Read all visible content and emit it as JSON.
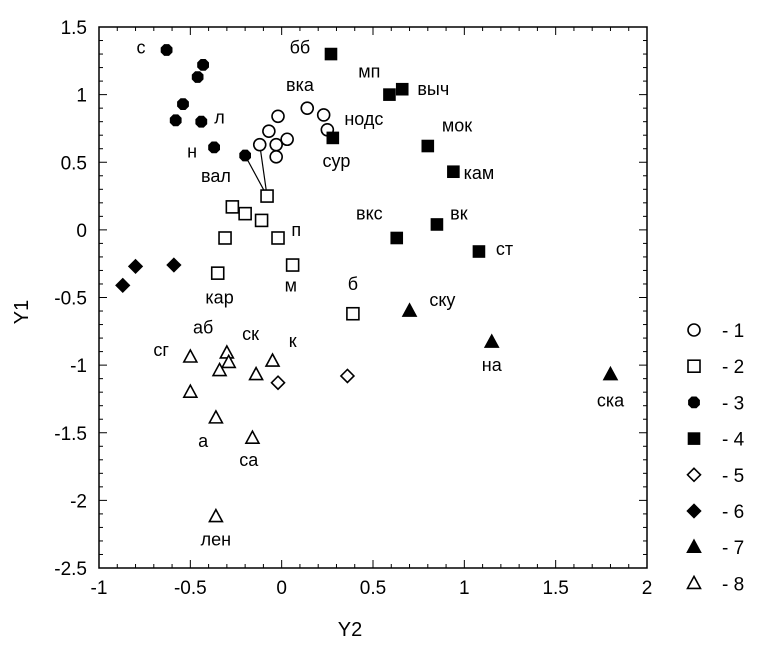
{
  "chart_data": {
    "type": "scatter",
    "xlabel": "Y2",
    "ylabel": "Y1",
    "xlim": [
      -1,
      2
    ],
    "ylim": [
      -2.5,
      1.5
    ],
    "xticks": [
      "-1",
      "-0.5",
      "0",
      "0.5",
      "1",
      "1.5",
      "2"
    ],
    "xtick_values": [
      -1,
      -0.5,
      0,
      0.5,
      1,
      1.5,
      2
    ],
    "yticks": [
      "1.5",
      "1",
      "0.5",
      "0",
      "-0.5",
      "-1",
      "-1.5",
      "-2",
      "-2.5"
    ],
    "ytick_values": [
      1.5,
      1,
      0.5,
      0,
      -0.5,
      -1,
      -1.5,
      -2,
      -2.5
    ],
    "grid": false,
    "legend_position": "right",
    "series": [
      {
        "name": "- 1",
        "marker": "circle-open",
        "points": [
          {
            "x": -0.02,
            "y": 0.84
          },
          {
            "x": -0.07,
            "y": 0.73
          },
          {
            "x": -0.12,
            "y": 0.63
          },
          {
            "x": -0.03,
            "y": 0.63
          },
          {
            "x": 0.03,
            "y": 0.67
          },
          {
            "x": -0.03,
            "y": 0.54
          },
          {
            "x": 0.14,
            "y": 0.9
          },
          {
            "x": 0.23,
            "y": 0.85
          },
          {
            "x": 0.25,
            "y": 0.74
          }
        ]
      },
      {
        "name": "- 2",
        "marker": "square-open",
        "points": [
          {
            "x": -0.08,
            "y": 0.25
          },
          {
            "x": -0.27,
            "y": 0.17
          },
          {
            "x": -0.2,
            "y": 0.12
          },
          {
            "x": -0.11,
            "y": 0.07
          },
          {
            "x": -0.31,
            "y": -0.06
          },
          {
            "x": -0.02,
            "y": -0.06
          },
          {
            "x": -0.35,
            "y": -0.32
          },
          {
            "x": 0.06,
            "y": -0.26
          },
          {
            "x": 0.39,
            "y": -0.62
          }
        ]
      },
      {
        "name": "- 3",
        "marker": "circle-filled",
        "points": [
          {
            "x": -0.63,
            "y": 1.33
          },
          {
            "x": -0.43,
            "y": 1.22
          },
          {
            "x": -0.46,
            "y": 1.13
          },
          {
            "x": -0.54,
            "y": 0.93
          },
          {
            "x": -0.58,
            "y": 0.81
          },
          {
            "x": -0.44,
            "y": 0.8
          },
          {
            "x": -0.37,
            "y": 0.61
          },
          {
            "x": -0.2,
            "y": 0.55
          }
        ]
      },
      {
        "name": "- 4",
        "marker": "square-filled",
        "points": [
          {
            "x": 0.27,
            "y": 1.3
          },
          {
            "x": 0.59,
            "y": 1.0
          },
          {
            "x": 0.66,
            "y": 1.04
          },
          {
            "x": 0.28,
            "y": 0.68
          },
          {
            "x": 0.8,
            "y": 0.62
          },
          {
            "x": 0.94,
            "y": 0.43
          },
          {
            "x": 0.63,
            "y": -0.06
          },
          {
            "x": 0.85,
            "y": 0.04
          },
          {
            "x": 1.08,
            "y": -0.16
          }
        ]
      },
      {
        "name": "- 5",
        "marker": "diamond-open",
        "points": [
          {
            "x": -0.02,
            "y": -1.13
          },
          {
            "x": 0.36,
            "y": -1.08
          }
        ]
      },
      {
        "name": "- 6",
        "marker": "diamond-filled",
        "points": [
          {
            "x": -0.87,
            "y": -0.41
          },
          {
            "x": -0.8,
            "y": -0.27
          },
          {
            "x": -0.59,
            "y": -0.26
          }
        ]
      },
      {
        "name": "- 7",
        "marker": "triangle-filled",
        "points": [
          {
            "x": 0.7,
            "y": -0.6
          },
          {
            "x": 1.15,
            "y": -0.83
          },
          {
            "x": 1.8,
            "y": -1.07
          }
        ]
      },
      {
        "name": "- 8",
        "marker": "triangle-open",
        "points": [
          {
            "x": -0.5,
            "y": -0.94
          },
          {
            "x": -0.3,
            "y": -0.91
          },
          {
            "x": -0.29,
            "y": -0.98
          },
          {
            "x": -0.34,
            "y": -1.04
          },
          {
            "x": -0.5,
            "y": -1.2
          },
          {
            "x": -0.36,
            "y": -1.39
          },
          {
            "x": -0.16,
            "y": -1.54
          },
          {
            "x": -0.14,
            "y": -1.07
          },
          {
            "x": -0.05,
            "y": -0.97
          },
          {
            "x": -0.36,
            "y": -2.12
          }
        ]
      }
    ],
    "point_labels": [
      {
        "text": "с",
        "x": -0.77,
        "y": 1.35
      },
      {
        "text": "бб",
        "x": 0.1,
        "y": 1.35
      },
      {
        "text": "мп",
        "x": 0.48,
        "y": 1.17
      },
      {
        "text": "выч",
        "x": 0.83,
        "y": 1.04
      },
      {
        "text": "вка",
        "x": 0.1,
        "y": 1.07
      },
      {
        "text": "л",
        "x": -0.34,
        "y": 0.83
      },
      {
        "text": "нодс",
        "x": 0.45,
        "y": 0.82
      },
      {
        "text": "мок",
        "x": 0.96,
        "y": 0.77
      },
      {
        "text": "н",
        "x": -0.49,
        "y": 0.58
      },
      {
        "text": "сур",
        "x": 0.3,
        "y": 0.51
      },
      {
        "text": "вал",
        "x": -0.36,
        "y": 0.4
      },
      {
        "text": "кам",
        "x": 1.08,
        "y": 0.42
      },
      {
        "text": "вкс",
        "x": 0.48,
        "y": 0.12
      },
      {
        "text": "вк",
        "x": 0.97,
        "y": 0.12
      },
      {
        "text": "п",
        "x": 0.08,
        "y": 0.0
      },
      {
        "text": "ст",
        "x": 1.22,
        "y": -0.14
      },
      {
        "text": "м",
        "x": 0.05,
        "y": -0.41
      },
      {
        "text": "б",
        "x": 0.39,
        "y": -0.4
      },
      {
        "text": "кар",
        "x": -0.34,
        "y": -0.5
      },
      {
        "text": "ску",
        "x": 0.88,
        "y": -0.52
      },
      {
        "text": "аб",
        "x": -0.43,
        "y": -0.72
      },
      {
        "text": "ск",
        "x": -0.17,
        "y": -0.77
      },
      {
        "text": "к",
        "x": 0.06,
        "y": -0.82
      },
      {
        "text": "сг",
        "x": -0.66,
        "y": -0.89
      },
      {
        "text": "на",
        "x": 1.15,
        "y": -1.0
      },
      {
        "text": "ска",
        "x": 1.8,
        "y": -1.26
      },
      {
        "text": "а",
        "x": -0.43,
        "y": -1.56
      },
      {
        "text": "са",
        "x": -0.18,
        "y": -1.7
      },
      {
        "text": "лен",
        "x": -0.36,
        "y": -2.29
      }
    ],
    "connectors": [
      {
        "x1": -0.2,
        "y1": 0.55,
        "x2": -0.08,
        "y2": 0.25
      },
      {
        "x1": -0.12,
        "y1": 0.63,
        "x2": -0.08,
        "y2": 0.25
      }
    ]
  }
}
